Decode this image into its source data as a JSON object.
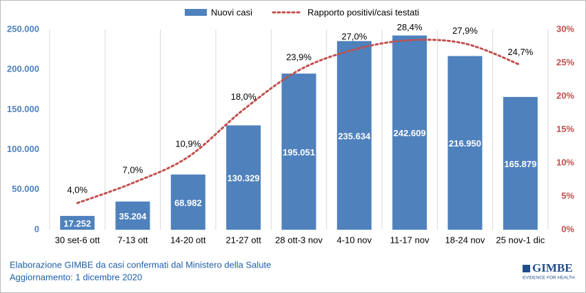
{
  "chart_data": {
    "type": "bar",
    "categories": [
      "30 set-6 ott",
      "7-13 ott",
      "14-20 ott",
      "21-27 ott",
      "28 ott-3 nov",
      "4-10 nov",
      "11-17 nov",
      "18-24 nov",
      "25 nov-1 dic"
    ],
    "series": [
      {
        "name": "Nuovi casi",
        "color": "#4f81bd",
        "values": [
          17252,
          35204,
          68982,
          130329,
          195051,
          235634,
          242609,
          216950,
          165879
        ],
        "value_labels": [
          "17.252",
          "35.204",
          "68.982",
          "130.329",
          "195.051",
          "235.634",
          "242.609",
          "216.950",
          "165.879"
        ]
      },
      {
        "name": "Rapporto positivi/casi testati",
        "color": "#c0504d",
        "type": "line",
        "axis": "y2",
        "values": [
          4.0,
          7.0,
          10.9,
          18.0,
          23.9,
          27.0,
          28.4,
          27.9,
          24.7
        ],
        "value_labels": [
          "4,0%",
          "7,0%",
          "10,9%",
          "18,0%",
          "23,9%",
          "27,0%",
          "28,4%",
          "27,9%",
          "24,7%"
        ]
      }
    ],
    "ylim": [
      0,
      250000
    ],
    "yticks": [
      0,
      {
        "value": 50000,
        "label": "50.000"
      },
      {
        "value": 100000,
        "label": "100.000"
      },
      {
        "value": 150000,
        "label": "150.000"
      },
      {
        "value": 200000,
        "label": "200.000"
      },
      {
        "value": 250000,
        "label": "250.000"
      }
    ],
    "y2lim": [
      0,
      30
    ],
    "y2ticks": [
      {
        "value": 0,
        "label": "0%"
      },
      {
        "value": 5,
        "label": "5%"
      },
      {
        "value": 10,
        "label": "10%"
      },
      {
        "value": 15,
        "label": "15%"
      },
      {
        "value": 20,
        "label": "20%"
      },
      {
        "value": 25,
        "label": "25%"
      },
      {
        "value": 30,
        "label": "30%"
      }
    ],
    "legend": "top"
  },
  "footer": {
    "lines": [
      "Elaborazione GIMBE da casi confermati dal Ministero della Salute",
      "Aggiornamento: 1 dicembre 2020"
    ]
  },
  "logo": {
    "name": "GIMBE",
    "tagline": "EVIDENCE FOR HEALTH"
  }
}
